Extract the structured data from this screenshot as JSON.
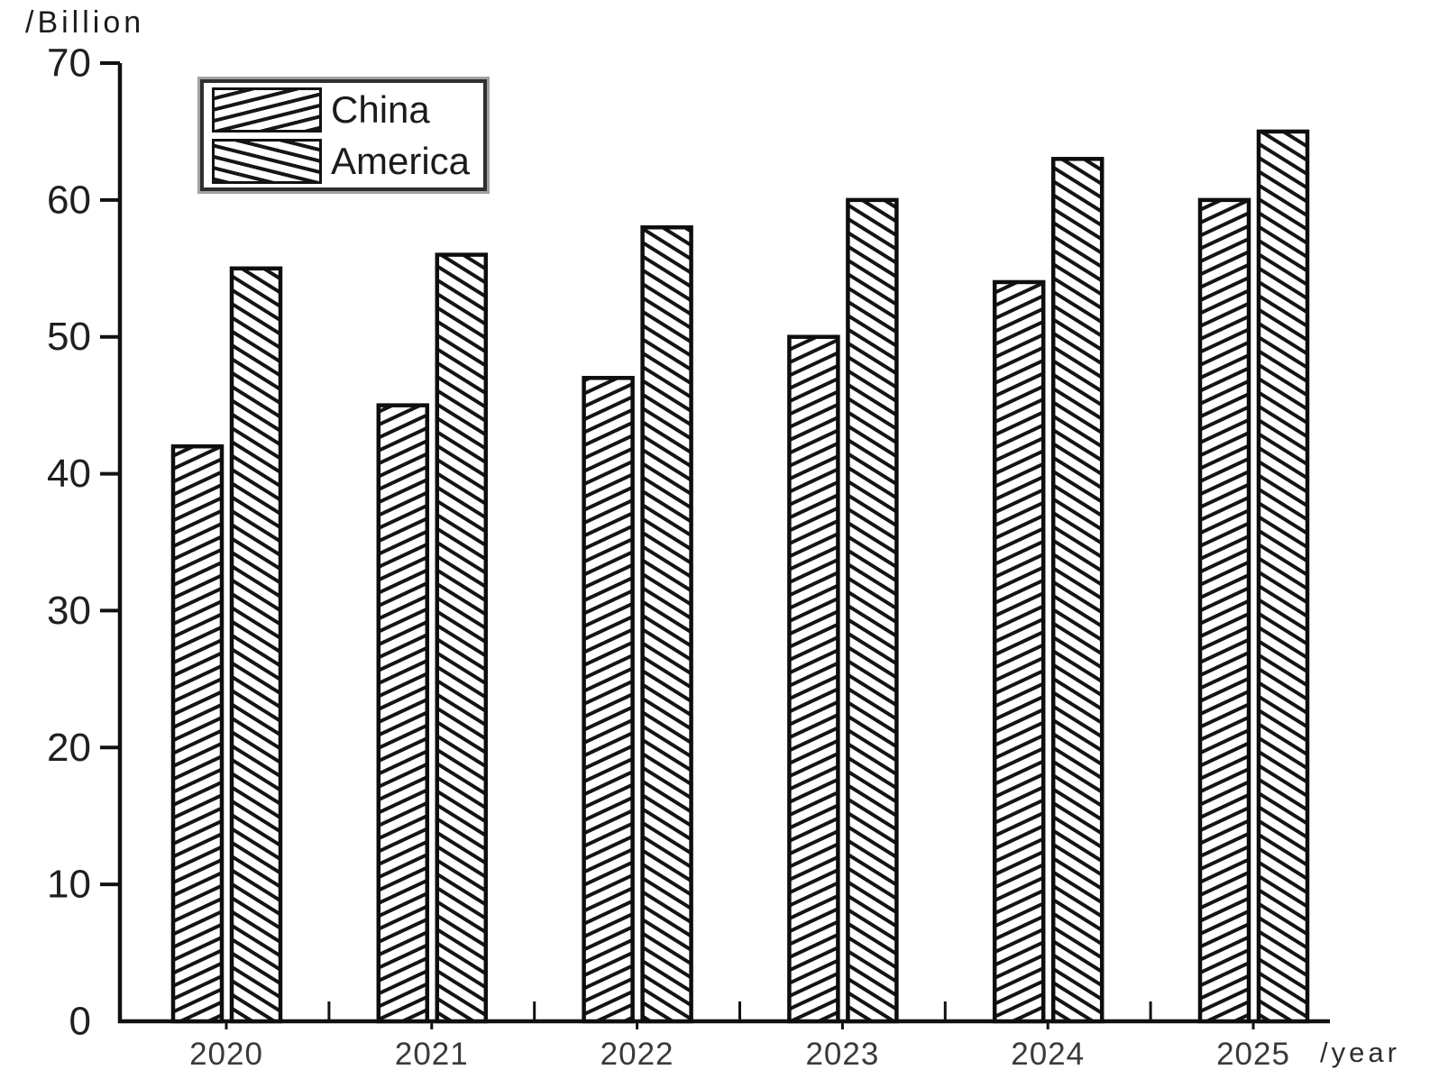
{
  "labels": {
    "y_axis_unit": "/Billion",
    "x_axis_unit": "/year"
  },
  "legend": {
    "items": [
      {
        "name": "China",
        "hatch": "forward-diagonal"
      },
      {
        "name": "America",
        "hatch": "backward-diagonal"
      }
    ]
  },
  "colors": {
    "ink": "#111111",
    "tick_label": "#1f1f1f",
    "year_label": "#3a3a3a",
    "background": "#ffffff"
  },
  "chart_data": {
    "type": "bar",
    "categories": [
      "2020",
      "2021",
      "2022",
      "2023",
      "2024",
      "2025"
    ],
    "series": [
      {
        "name": "China",
        "values": [
          42,
          45,
          47,
          50,
          54,
          60
        ],
        "hatch": "forward-diagonal"
      },
      {
        "name": "America",
        "values": [
          55,
          56,
          58,
          60,
          63,
          65
        ],
        "hatch": "backward-diagonal"
      }
    ],
    "title": "",
    "xlabel": "/year",
    "ylabel": "/Billion",
    "ylim": [
      0,
      70
    ],
    "yticks": [
      0,
      10,
      20,
      30,
      40,
      50,
      60,
      70
    ],
    "grid": false,
    "legend_position": "top-left"
  }
}
